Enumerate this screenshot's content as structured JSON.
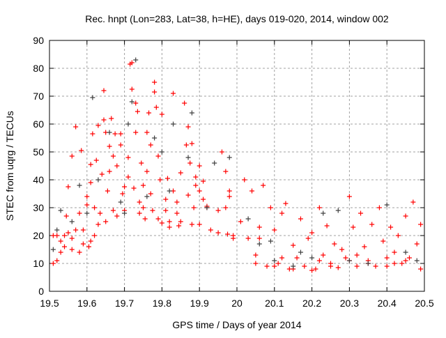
{
  "chart_data": {
    "type": "scatter",
    "title": "Rec. hnpt (Lon=283, Lat=38, h=HE), days 019-020, 2014, window 002",
    "xlabel": "GPS time / Days of year 2014",
    "ylabel": "STEC from uqrg / TECUs",
    "xlim": [
      19.5,
      20.5
    ],
    "ylim": [
      0,
      90
    ],
    "xticks": [
      "19.5",
      "19.6",
      "19.7",
      "19.8",
      "19.9",
      "20",
      "20.1",
      "20.2",
      "20.3",
      "20.4",
      "20.5"
    ],
    "yticks": [
      "0",
      "10",
      "20",
      "30",
      "40",
      "50",
      "60",
      "70",
      "80",
      "90"
    ],
    "grid": true,
    "series": [
      {
        "name": "red",
        "color": "#ff0000",
        "points": [
          [
            19.51,
            10
          ],
          [
            19.51,
            20
          ],
          [
            19.52,
            11
          ],
          [
            19.52,
            20
          ],
          [
            19.53,
            14
          ],
          [
            19.53,
            18
          ],
          [
            19.54,
            16
          ],
          [
            19.54,
            20
          ],
          [
            19.545,
            27
          ],
          [
            19.55,
            37.5
          ],
          [
            19.55,
            21
          ],
          [
            19.56,
            15
          ],
          [
            19.56,
            19
          ],
          [
            19.56,
            48.5
          ],
          [
            19.57,
            59
          ],
          [
            19.57,
            22
          ],
          [
            19.58,
            14
          ],
          [
            19.58,
            28
          ],
          [
            19.585,
            50.5
          ],
          [
            19.59,
            17
          ],
          [
            19.59,
            22
          ],
          [
            19.6,
            34
          ],
          [
            19.6,
            31
          ],
          [
            19.605,
            16
          ],
          [
            19.61,
            18
          ],
          [
            19.61,
            39
          ],
          [
            19.61,
            45.5
          ],
          [
            19.615,
            56.5
          ],
          [
            19.62,
            20
          ],
          [
            19.62,
            30
          ],
          [
            19.625,
            47
          ],
          [
            19.63,
            59.5
          ],
          [
            19.63,
            24
          ],
          [
            19.635,
            28
          ],
          [
            19.64,
            42
          ],
          [
            19.645,
            61.5
          ],
          [
            19.645,
            72
          ],
          [
            19.65,
            57
          ],
          [
            19.65,
            25
          ],
          [
            19.655,
            36
          ],
          [
            19.66,
            43
          ],
          [
            19.66,
            52
          ],
          [
            19.665,
            62
          ],
          [
            19.67,
            29
          ],
          [
            19.67,
            48.5
          ],
          [
            19.675,
            56.5
          ],
          [
            19.68,
            45
          ],
          [
            19.68,
            27
          ],
          [
            19.69,
            56.5
          ],
          [
            19.69,
            52.5
          ],
          [
            19.695,
            35
          ],
          [
            19.7,
            37.5
          ],
          [
            19.7,
            29
          ],
          [
            19.71,
            48
          ],
          [
            19.71,
            41
          ],
          [
            19.715,
            81.5
          ],
          [
            19.72,
            82
          ],
          [
            19.72,
            72.5
          ],
          [
            19.725,
            37
          ],
          [
            19.73,
            57
          ],
          [
            19.73,
            67.5
          ],
          [
            19.735,
            64.5
          ],
          [
            19.74,
            28
          ],
          [
            19.74,
            32
          ],
          [
            19.745,
            46
          ],
          [
            19.75,
            30
          ],
          [
            19.75,
            38
          ],
          [
            19.755,
            26
          ],
          [
            19.76,
            57
          ],
          [
            19.76,
            43
          ],
          [
            19.765,
            64
          ],
          [
            19.77,
            52.5
          ],
          [
            19.77,
            35
          ],
          [
            19.775,
            29
          ],
          [
            19.78,
            75
          ],
          [
            19.78,
            71.5
          ],
          [
            19.785,
            66
          ],
          [
            19.79,
            26
          ],
          [
            19.79,
            48.5
          ],
          [
            19.795,
            40
          ],
          [
            19.8,
            63.5
          ],
          [
            19.8,
            24.5
          ],
          [
            19.81,
            33
          ],
          [
            19.81,
            29
          ],
          [
            19.815,
            40.5
          ],
          [
            19.82,
            23
          ],
          [
            19.82,
            25
          ],
          [
            19.83,
            71
          ],
          [
            19.83,
            36
          ],
          [
            19.84,
            28
          ],
          [
            19.84,
            32
          ],
          [
            19.845,
            23.5
          ],
          [
            19.85,
            42.5
          ],
          [
            19.85,
            25
          ],
          [
            19.86,
            67.5
          ],
          [
            19.865,
            52.5
          ],
          [
            19.87,
            59
          ],
          [
            19.87,
            34.5
          ],
          [
            19.875,
            46
          ],
          [
            19.88,
            24
          ],
          [
            19.88,
            53
          ],
          [
            19.885,
            30
          ],
          [
            19.89,
            41
          ],
          [
            19.89,
            38
          ],
          [
            19.9,
            45
          ],
          [
            19.9,
            36
          ],
          [
            19.9,
            24
          ],
          [
            19.91,
            39.5
          ],
          [
            19.91,
            33
          ],
          [
            19.92,
            30
          ],
          [
            19.92,
            30.5
          ],
          [
            19.93,
            22
          ],
          [
            19.95,
            29
          ],
          [
            19.95,
            21
          ],
          [
            19.96,
            50
          ],
          [
            19.97,
            43
          ],
          [
            19.97,
            30
          ],
          [
            19.975,
            20.5
          ],
          [
            19.98,
            36
          ],
          [
            19.98,
            34
          ],
          [
            19.99,
            20
          ],
          [
            19.99,
            19
          ],
          [
            20.01,
            25
          ],
          [
            20.02,
            40
          ],
          [
            20.03,
            19
          ],
          [
            20.04,
            36
          ],
          [
            20.05,
            13
          ],
          [
            20.06,
            23
          ],
          [
            20.07,
            38
          ],
          [
            20.08,
            9
          ],
          [
            20.09,
            30
          ],
          [
            20.1,
            22
          ],
          [
            20.11,
            10
          ],
          [
            20.12,
            28
          ],
          [
            20.13,
            31.5
          ],
          [
            20.14,
            8
          ],
          [
            20.15,
            16.5
          ],
          [
            20.16,
            12
          ],
          [
            20.17,
            26
          ],
          [
            20.18,
            9
          ],
          [
            20.19,
            19
          ],
          [
            20.2,
            21
          ],
          [
            20.21,
            8
          ],
          [
            20.22,
            30
          ],
          [
            20.23,
            13
          ],
          [
            20.24,
            23.5
          ],
          [
            20.25,
            10
          ],
          [
            20.26,
            17
          ],
          [
            20.27,
            8.5
          ],
          [
            20.28,
            15
          ],
          [
            20.29,
            12
          ],
          [
            20.3,
            34
          ],
          [
            20.31,
            23
          ],
          [
            20.32,
            9
          ],
          [
            20.33,
            28
          ],
          [
            20.34,
            16
          ],
          [
            20.35,
            11
          ],
          [
            20.36,
            24
          ],
          [
            20.37,
            9
          ],
          [
            20.38,
            30
          ],
          [
            20.39,
            18
          ],
          [
            20.4,
            12
          ],
          [
            20.41,
            23
          ],
          [
            20.42,
            14
          ],
          [
            20.43,
            20
          ],
          [
            20.44,
            10
          ],
          [
            20.45,
            27
          ],
          [
            20.46,
            12
          ],
          [
            20.47,
            32
          ],
          [
            20.48,
            17
          ],
          [
            20.49,
            8
          ],
          [
            20.49,
            24
          ],
          [
            20.05,
            10
          ],
          [
            20.1,
            9
          ],
          [
            20.15,
            8
          ],
          [
            20.2,
            7.5
          ],
          [
            20.25,
            9
          ],
          [
            20.3,
            11
          ],
          [
            20.35,
            10
          ],
          [
            20.4,
            9
          ],
          [
            20.45,
            11
          ],
          [
            20.06,
            19
          ],
          [
            20.12,
            12
          ],
          [
            20.22,
            11
          ],
          [
            20.32,
            13
          ],
          [
            20.42,
            10
          ]
        ]
      },
      {
        "name": "gray",
        "color": "#404040",
        "points": [
          [
            19.51,
            15
          ],
          [
            19.52,
            22
          ],
          [
            19.53,
            29
          ],
          [
            19.56,
            25
          ],
          [
            19.58,
            38
          ],
          [
            19.6,
            28
          ],
          [
            19.615,
            69.5
          ],
          [
            19.63,
            40
          ],
          [
            19.66,
            57
          ],
          [
            19.69,
            32
          ],
          [
            19.7,
            28
          ],
          [
            19.71,
            60
          ],
          [
            19.72,
            68
          ],
          [
            19.73,
            83
          ],
          [
            19.76,
            34
          ],
          [
            19.78,
            55
          ],
          [
            19.8,
            50
          ],
          [
            19.82,
            36
          ],
          [
            19.83,
            60
          ],
          [
            19.87,
            48
          ],
          [
            19.88,
            64
          ],
          [
            19.92,
            30
          ],
          [
            19.94,
            46
          ],
          [
            19.98,
            48
          ],
          [
            20.03,
            26
          ],
          [
            20.06,
            17
          ],
          [
            20.09,
            18
          ],
          [
            20.1,
            11
          ],
          [
            20.15,
            9
          ],
          [
            20.17,
            14
          ],
          [
            20.2,
            12
          ],
          [
            20.23,
            28
          ],
          [
            20.27,
            29
          ],
          [
            20.3,
            11
          ],
          [
            20.35,
            10
          ],
          [
            20.4,
            31
          ],
          [
            20.45,
            14
          ],
          [
            20.48,
            11
          ]
        ]
      }
    ]
  }
}
